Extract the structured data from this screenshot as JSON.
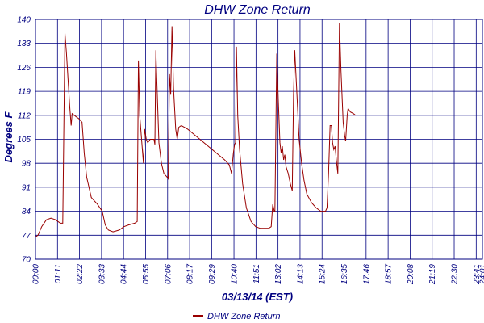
{
  "chart_data": {
    "type": "line",
    "title": "DHW Zone Return",
    "xlabel": "03/13/14 (EST)",
    "ylabel": "Degrees F",
    "xlim": [
      0,
      1441
    ],
    "ylim": [
      70,
      140
    ],
    "x_ticks": [
      {
        "m": 0,
        "label": "00:00"
      },
      {
        "m": 71,
        "label": "01:11"
      },
      {
        "m": 142,
        "label": "02:22"
      },
      {
        "m": 213,
        "label": "03:33"
      },
      {
        "m": 284,
        "label": "04:44"
      },
      {
        "m": 355,
        "label": "05:55"
      },
      {
        "m": 426,
        "label": "07:06"
      },
      {
        "m": 497,
        "label": "08:17"
      },
      {
        "m": 568,
        "label": "09:29"
      },
      {
        "m": 640,
        "label": "10:40"
      },
      {
        "m": 711,
        "label": "11:51"
      },
      {
        "m": 782,
        "label": "13:02"
      },
      {
        "m": 853,
        "label": "14:13"
      },
      {
        "m": 924,
        "label": "15:24"
      },
      {
        "m": 995,
        "label": "16:35"
      },
      {
        "m": 1066,
        "label": "17:46"
      },
      {
        "m": 1137,
        "label": "18:57"
      },
      {
        "m": 1208,
        "label": "20:08"
      },
      {
        "m": 1279,
        "label": "21:19"
      },
      {
        "m": 1350,
        "label": "22:30"
      },
      {
        "m": 1421,
        "label": "23:41"
      },
      {
        "m": 1441,
        "label": "24:01"
      }
    ],
    "y_ticks": [
      70,
      77,
      84,
      91,
      98,
      105,
      112,
      119,
      126,
      133,
      140
    ],
    "grid": true,
    "legend_position": "bottom-center",
    "colors": {
      "line": "#990000",
      "grid": "#000080",
      "text": "#000080"
    },
    "series": [
      {
        "name": "DHW Zone Return",
        "points": [
          [
            0,
            76.5
          ],
          [
            8,
            77
          ],
          [
            20,
            79.5
          ],
          [
            35,
            81.5
          ],
          [
            50,
            82
          ],
          [
            65,
            81.5
          ],
          [
            80,
            80.5
          ],
          [
            88,
            80.5
          ],
          [
            95,
            136
          ],
          [
            100,
            130
          ],
          [
            110,
            115
          ],
          [
            115,
            109
          ],
          [
            118,
            112.5
          ],
          [
            125,
            112
          ],
          [
            132,
            111.5
          ],
          [
            140,
            111
          ],
          [
            145,
            110.5
          ],
          [
            150,
            110
          ],
          [
            157,
            101
          ],
          [
            165,
            94
          ],
          [
            180,
            88
          ],
          [
            200,
            86
          ],
          [
            215,
            84
          ],
          [
            225,
            80
          ],
          [
            235,
            78.5
          ],
          [
            250,
            78
          ],
          [
            270,
            78.5
          ],
          [
            285,
            79.5
          ],
          [
            300,
            80
          ],
          [
            320,
            80.5
          ],
          [
            328,
            81
          ],
          [
            332,
            128
          ],
          [
            336,
            112
          ],
          [
            342,
            105
          ],
          [
            348,
            98
          ],
          [
            352,
            108
          ],
          [
            357,
            105
          ],
          [
            362,
            104
          ],
          [
            370,
            105
          ],
          [
            382,
            105
          ],
          [
            385,
            103.5
          ],
          [
            388,
            131
          ],
          [
            392,
            120
          ],
          [
            398,
            104
          ],
          [
            406,
            98
          ],
          [
            414,
            95
          ],
          [
            424,
            94
          ],
          [
            428,
            93.5
          ],
          [
            432,
            124
          ],
          [
            436,
            118
          ],
          [
            440,
            138
          ],
          [
            445,
            120
          ],
          [
            452,
            108
          ],
          [
            457,
            105
          ],
          [
            462,
            108.5
          ],
          [
            470,
            109
          ],
          [
            490,
            108
          ],
          [
            510,
            106.5
          ],
          [
            530,
            105
          ],
          [
            550,
            103.5
          ],
          [
            570,
            102
          ],
          [
            590,
            100.5
          ],
          [
            610,
            99
          ],
          [
            625,
            97.5
          ],
          [
            632,
            95
          ],
          [
            638,
            101
          ],
          [
            642,
            103.5
          ],
          [
            645,
            104
          ],
          [
            648,
            132
          ],
          [
            652,
            112
          ],
          [
            658,
            102
          ],
          [
            668,
            92
          ],
          [
            680,
            85
          ],
          [
            695,
            81
          ],
          [
            710,
            79.5
          ],
          [
            725,
            79
          ],
          [
            740,
            79
          ],
          [
            752,
            79
          ],
          [
            760,
            79.5
          ],
          [
            765,
            86
          ],
          [
            770,
            84
          ],
          [
            772,
            84
          ],
          [
            778,
            130
          ],
          [
            782,
            119
          ],
          [
            788,
            104
          ],
          [
            792,
            101
          ],
          [
            796,
            103
          ],
          [
            800,
            99
          ],
          [
            804,
            100.5
          ],
          [
            808,
            97
          ],
          [
            815,
            95
          ],
          [
            822,
            92
          ],
          [
            828,
            90
          ],
          [
            832,
            118
          ],
          [
            836,
            131
          ],
          [
            842,
            120
          ],
          [
            850,
            105
          ],
          [
            858,
            98
          ],
          [
            866,
            93
          ],
          [
            875,
            89
          ],
          [
            890,
            86.5
          ],
          [
            905,
            85
          ],
          [
            920,
            84
          ],
          [
            935,
            84
          ],
          [
            940,
            85
          ],
          [
            945,
            95
          ],
          [
            950,
            109
          ],
          [
            954,
            109
          ],
          [
            958,
            104
          ],
          [
            962,
            102
          ],
          [
            966,
            103
          ],
          [
            970,
            99
          ],
          [
            975,
            95
          ],
          [
            980,
            139
          ],
          [
            985,
            125
          ],
          [
            992,
            110
          ],
          [
            997,
            106
          ],
          [
            1000,
            104.5
          ],
          [
            1005,
            112
          ],
          [
            1008,
            114
          ],
          [
            1015,
            113
          ],
          [
            1025,
            112.5
          ],
          [
            1032,
            112
          ]
        ]
      }
    ]
  }
}
